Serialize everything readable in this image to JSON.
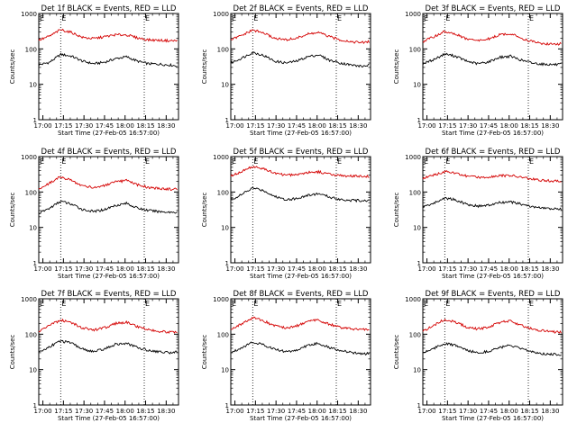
{
  "colors": {
    "events": "#000000",
    "lld": "#d40000",
    "axis": "#000000",
    "background": "#ffffff"
  },
  "chart_data": [
    {
      "type": "line",
      "title": "Det 1f BLACK = Events, RED = LLD",
      "xlabel": "Start Time (27-Feb-05 16:57:00)",
      "ylabel": "Counts/sec",
      "yscale": "log",
      "ylim": [
        1,
        1000
      ],
      "ytick_labels": [
        "1",
        "10",
        "100",
        "1000"
      ],
      "xlim": [
        "16:57",
        "18:39"
      ],
      "xtick_labels": [
        "17:00",
        "17:15",
        "17:30",
        "17:45",
        "18:00",
        "18:15",
        "18:30"
      ],
      "marker_labels": [
        "E",
        "E"
      ],
      "marker_times": [
        "17:13",
        "18:14"
      ],
      "series": [
        {
          "name": "Events",
          "color": "#000000",
          "x": [
            "16:57",
            "17:05",
            "17:13",
            "17:21",
            "17:29",
            "17:37",
            "17:45",
            "17:53",
            "18:01",
            "18:09",
            "18:17",
            "18:25",
            "18:33",
            "18:38"
          ],
          "values": [
            35,
            42,
            70,
            62,
            45,
            38,
            42,
            53,
            60,
            45,
            38,
            37,
            35,
            33
          ]
        },
        {
          "name": "LLD",
          "color": "#d40000",
          "x": [
            "16:57",
            "17:05",
            "17:13",
            "17:21",
            "17:29",
            "17:37",
            "17:45",
            "17:53",
            "18:01",
            "18:09",
            "18:17",
            "18:25",
            "18:33",
            "18:38"
          ],
          "values": [
            175,
            230,
            350,
            290,
            210,
            195,
            220,
            250,
            250,
            205,
            180,
            175,
            170,
            170
          ]
        }
      ]
    },
    {
      "type": "line",
      "title": "Det 2f BLACK = Events, RED = LLD",
      "xlabel": "Start Time (27-Feb-05 16:57:00)",
      "ylabel": "Counts/sec",
      "yscale": "log",
      "ylim": [
        1,
        1000
      ],
      "ytick_labels": [
        "1",
        "10",
        "100",
        "1000"
      ],
      "xlim": [
        "16:57",
        "18:39"
      ],
      "xtick_labels": [
        "17:00",
        "17:15",
        "17:30",
        "17:45",
        "18:00",
        "18:15",
        "18:30"
      ],
      "marker_labels": [
        "E",
        "E"
      ],
      "marker_times": [
        "17:13",
        "18:14"
      ],
      "series": [
        {
          "name": "Events",
          "color": "#000000",
          "x": [
            "16:57",
            "17:05",
            "17:13",
            "17:21",
            "17:29",
            "17:37",
            "17:45",
            "17:53",
            "18:01",
            "18:09",
            "18:17",
            "18:25",
            "18:33",
            "18:38"
          ],
          "values": [
            40,
            55,
            80,
            65,
            45,
            40,
            45,
            60,
            68,
            48,
            40,
            35,
            32,
            35
          ]
        },
        {
          "name": "LLD",
          "color": "#d40000",
          "x": [
            "16:57",
            "17:05",
            "17:13",
            "17:21",
            "17:29",
            "17:37",
            "17:45",
            "17:53",
            "18:01",
            "18:09",
            "18:17",
            "18:25",
            "18:33",
            "18:38"
          ],
          "values": [
            180,
            240,
            340,
            280,
            200,
            180,
            200,
            260,
            290,
            220,
            180,
            160,
            150,
            160
          ]
        }
      ]
    },
    {
      "type": "line",
      "title": "Det 3f BLACK = Events, RED = LLD",
      "xlabel": "Start Time (27-Feb-05 16:57:00)",
      "ylabel": "Counts/sec",
      "yscale": "log",
      "ylim": [
        1,
        1000
      ],
      "ytick_labels": [
        "1",
        "10",
        "100",
        "1000"
      ],
      "xlim": [
        "16:57",
        "18:39"
      ],
      "xtick_labels": [
        "17:00",
        "17:15",
        "17:30",
        "17:45",
        "18:00",
        "18:15",
        "18:30"
      ],
      "marker_labels": [
        "E",
        "E"
      ],
      "marker_times": [
        "17:13",
        "18:14"
      ],
      "series": [
        {
          "name": "Events",
          "color": "#000000",
          "x": [
            "16:57",
            "17:05",
            "17:13",
            "17:21",
            "17:29",
            "17:37",
            "17:45",
            "17:53",
            "18:01",
            "18:09",
            "18:17",
            "18:25",
            "18:33",
            "18:38"
          ],
          "values": [
            38,
            50,
            72,
            62,
            45,
            38,
            43,
            58,
            62,
            48,
            40,
            37,
            36,
            36
          ]
        },
        {
          "name": "LLD",
          "color": "#d40000",
          "x": [
            "16:57",
            "17:05",
            "17:13",
            "17:21",
            "17:29",
            "17:37",
            "17:45",
            "17:53",
            "18:01",
            "18:09",
            "18:17",
            "18:25",
            "18:33",
            "18:38"
          ],
          "values": [
            160,
            220,
            310,
            260,
            190,
            170,
            190,
            250,
            270,
            200,
            160,
            140,
            135,
            140
          ]
        }
      ]
    },
    {
      "type": "line",
      "title": "Det 4f BLACK = Events, RED = LLD",
      "xlabel": "Start Time (27-Feb-05 16:57:00)",
      "ylabel": "Counts/sec",
      "yscale": "log",
      "ylim": [
        1,
        1000
      ],
      "ytick_labels": [
        "1",
        "10",
        "100",
        "1000"
      ],
      "xlim": [
        "16:57",
        "18:39"
      ],
      "xtick_labels": [
        "17:00",
        "17:15",
        "17:30",
        "17:45",
        "18:00",
        "18:15",
        "18:30"
      ],
      "marker_labels": [
        "E",
        "E"
      ],
      "marker_times": [
        "17:13",
        "18:14"
      ],
      "series": [
        {
          "name": "Events",
          "color": "#000000",
          "x": [
            "16:57",
            "17:05",
            "17:13",
            "17:21",
            "17:29",
            "17:37",
            "17:45",
            "17:53",
            "18:01",
            "18:09",
            "18:17",
            "18:25",
            "18:33",
            "18:38"
          ],
          "values": [
            25,
            35,
            55,
            45,
            32,
            28,
            32,
            42,
            48,
            35,
            30,
            28,
            27,
            27
          ]
        },
        {
          "name": "LLD",
          "color": "#d40000",
          "x": [
            "16:57",
            "17:05",
            "17:13",
            "17:21",
            "17:29",
            "17:37",
            "17:45",
            "17:53",
            "18:01",
            "18:09",
            "18:17",
            "18:25",
            "18:33",
            "18:38"
          ],
          "values": [
            120,
            180,
            270,
            210,
            150,
            135,
            150,
            190,
            210,
            160,
            135,
            125,
            120,
            120
          ]
        }
      ]
    },
    {
      "type": "line",
      "title": "Det 5f BLACK = Events, RED = LLD",
      "xlabel": "Start Time (27-Feb-05 16:57:00)",
      "ylabel": "Counts/sec",
      "yscale": "log",
      "ylim": [
        1,
        1000
      ],
      "ytick_labels": [
        "1",
        "10",
        "100",
        "1000"
      ],
      "xlim": [
        "16:57",
        "18:39"
      ],
      "xtick_labels": [
        "17:00",
        "17:15",
        "17:30",
        "17:45",
        "18:00",
        "18:15",
        "18:30"
      ],
      "marker_labels": [
        "E",
        "E"
      ],
      "marker_times": [
        "17:13",
        "18:14"
      ],
      "series": [
        {
          "name": "Events",
          "color": "#000000",
          "x": [
            "16:57",
            "17:05",
            "17:13",
            "17:21",
            "17:29",
            "17:37",
            "17:45",
            "17:53",
            "18:01",
            "18:09",
            "18:17",
            "18:25",
            "18:33",
            "18:38"
          ],
          "values": [
            60,
            85,
            130,
            110,
            75,
            62,
            65,
            80,
            90,
            72,
            62,
            58,
            57,
            58
          ]
        },
        {
          "name": "LLD",
          "color": "#d40000",
          "x": [
            "16:57",
            "17:05",
            "17:13",
            "17:21",
            "17:29",
            "17:37",
            "17:45",
            "17:53",
            "18:01",
            "18:09",
            "18:17",
            "18:25",
            "18:33",
            "18:38"
          ],
          "values": [
            280,
            380,
            520,
            450,
            340,
            300,
            310,
            360,
            370,
            320,
            290,
            280,
            275,
            280
          ]
        }
      ]
    },
    {
      "type": "line",
      "title": "Det 6f BLACK = Events, RED = LLD",
      "xlabel": "Start Time (27-Feb-05 16:57:00)",
      "ylabel": "Counts/sec",
      "yscale": "log",
      "ylim": [
        1,
        1000
      ],
      "ytick_labels": [
        "1",
        "10",
        "100",
        "1000"
      ],
      "xlim": [
        "16:57",
        "18:39"
      ],
      "xtick_labels": [
        "17:00",
        "17:15",
        "17:30",
        "17:45",
        "18:00",
        "18:15",
        "18:30"
      ],
      "marker_labels": [
        "E",
        "E"
      ],
      "marker_times": [
        "17:13",
        "18:14"
      ],
      "series": [
        {
          "name": "Events",
          "color": "#000000",
          "x": [
            "16:57",
            "17:05",
            "17:13",
            "17:21",
            "17:29",
            "17:37",
            "17:45",
            "17:53",
            "18:01",
            "18:09",
            "18:17",
            "18:25",
            "18:33",
            "18:38"
          ],
          "values": [
            38,
            48,
            68,
            60,
            45,
            40,
            42,
            50,
            52,
            45,
            38,
            35,
            33,
            33
          ]
        },
        {
          "name": "LLD",
          "color": "#d40000",
          "x": [
            "16:57",
            "17:05",
            "17:13",
            "17:21",
            "17:29",
            "17:37",
            "17:45",
            "17:53",
            "18:01",
            "18:09",
            "18:17",
            "18:25",
            "18:33",
            "18:38"
          ],
          "values": [
            240,
            300,
            380,
            340,
            280,
            260,
            270,
            290,
            290,
            260,
            230,
            210,
            205,
            205
          ]
        }
      ]
    },
    {
      "type": "line",
      "title": "Det 7f BLACK = Events, RED = LLD",
      "xlabel": "Start Time (27-Feb-05 16:57:00)",
      "ylabel": "Counts/sec",
      "yscale": "log",
      "ylim": [
        1,
        1000
      ],
      "ytick_labels": [
        "1",
        "10",
        "100",
        "1000"
      ],
      "xlim": [
        "16:57",
        "18:39"
      ],
      "xtick_labels": [
        "17:00",
        "17:15",
        "17:30",
        "17:45",
        "18:00",
        "18:15",
        "18:30"
      ],
      "marker_labels": [
        "E",
        "E"
      ],
      "marker_times": [
        "17:13",
        "18:14"
      ],
      "series": [
        {
          "name": "Events",
          "color": "#000000",
          "x": [
            "16:57",
            "17:05",
            "17:13",
            "17:21",
            "17:29",
            "17:37",
            "17:45",
            "17:53",
            "18:01",
            "18:09",
            "18:17",
            "18:25",
            "18:33",
            "18:38"
          ],
          "values": [
            30,
            45,
            65,
            55,
            38,
            32,
            38,
            52,
            55,
            42,
            35,
            32,
            30,
            32
          ]
        },
        {
          "name": "LLD",
          "color": "#d40000",
          "x": [
            "16:57",
            "17:05",
            "17:13",
            "17:21",
            "17:29",
            "17:37",
            "17:45",
            "17:53",
            "18:01",
            "18:09",
            "18:17",
            "18:25",
            "18:33",
            "18:38"
          ],
          "values": [
            120,
            180,
            250,
            210,
            150,
            130,
            150,
            200,
            220,
            165,
            135,
            120,
            115,
            118
          ]
        }
      ]
    },
    {
      "type": "line",
      "title": "Det 8f BLACK = Events, RED = LLD",
      "xlabel": "Start Time (27-Feb-05 16:57:00)",
      "ylabel": "Counts/sec",
      "yscale": "log",
      "ylim": [
        1,
        1000
      ],
      "ytick_labels": [
        "1",
        "10",
        "100",
        "1000"
      ],
      "xlim": [
        "16:57",
        "18:39"
      ],
      "xtick_labels": [
        "17:00",
        "17:15",
        "17:30",
        "17:45",
        "18:00",
        "18:15",
        "18:30"
      ],
      "marker_labels": [
        "E",
        "E"
      ],
      "marker_times": [
        "17:13",
        "18:14"
      ],
      "series": [
        {
          "name": "Events",
          "color": "#000000",
          "x": [
            "16:57",
            "17:05",
            "17:13",
            "17:21",
            "17:29",
            "17:37",
            "17:45",
            "17:53",
            "18:01",
            "18:09",
            "18:17",
            "18:25",
            "18:33",
            "18:38"
          ],
          "values": [
            30,
            42,
            60,
            50,
            38,
            32,
            35,
            48,
            55,
            42,
            35,
            30,
            28,
            28
          ]
        },
        {
          "name": "LLD",
          "color": "#d40000",
          "x": [
            "16:57",
            "17:05",
            "17:13",
            "17:21",
            "17:29",
            "17:37",
            "17:45",
            "17:53",
            "18:01",
            "18:09",
            "18:17",
            "18:25",
            "18:33",
            "18:38"
          ],
          "values": [
            140,
            200,
            290,
            240,
            170,
            150,
            170,
            230,
            250,
            190,
            155,
            140,
            135,
            135
          ]
        }
      ]
    },
    {
      "type": "line",
      "title": "Det 9f BLACK = Events, RED = LLD",
      "xlabel": "Start Time (27-Feb-05 16:57:00)",
      "ylabel": "Counts/sec",
      "yscale": "log",
      "ylim": [
        1,
        1000
      ],
      "ytick_labels": [
        "1",
        "10",
        "100",
        "1000"
      ],
      "xlim": [
        "16:57",
        "18:39"
      ],
      "xtick_labels": [
        "17:00",
        "17:15",
        "17:30",
        "17:45",
        "18:00",
        "18:15",
        "18:30"
      ],
      "marker_labels": [
        "E",
        "E"
      ],
      "marker_times": [
        "17:13",
        "18:14"
      ],
      "series": [
        {
          "name": "Events",
          "color": "#000000",
          "x": [
            "16:57",
            "17:05",
            "17:13",
            "17:21",
            "17:29",
            "17:37",
            "17:45",
            "17:53",
            "18:01",
            "18:09",
            "18:17",
            "18:25",
            "18:33",
            "18:38"
          ],
          "values": [
            30,
            40,
            55,
            48,
            35,
            30,
            33,
            42,
            48,
            38,
            32,
            28,
            27,
            27
          ]
        },
        {
          "name": "LLD",
          "color": "#d40000",
          "x": [
            "16:57",
            "17:05",
            "17:13",
            "17:21",
            "17:29",
            "17:37",
            "17:45",
            "17:53",
            "18:01",
            "18:09",
            "18:17",
            "18:25",
            "18:33",
            "18:38"
          ],
          "values": [
            120,
            180,
            260,
            220,
            160,
            140,
            160,
            215,
            235,
            175,
            140,
            125,
            115,
            115
          ]
        }
      ]
    }
  ]
}
